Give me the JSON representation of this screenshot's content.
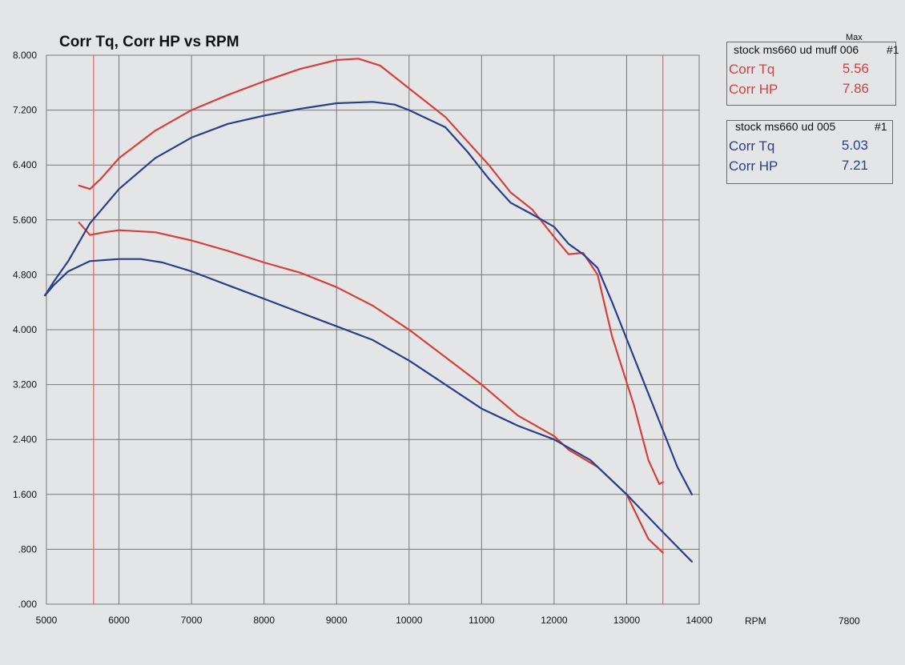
{
  "colors": {
    "red": "#d4403a",
    "blue": "#2a3f8c",
    "grid": "#777777",
    "limit": "#d86a66"
  },
  "legend": {
    "max_label": "Max",
    "run1": {
      "title": "stock ms660 ud muff 006",
      "run_no": "#1",
      "tq_label": "Corr Tq",
      "tq_value": "5.56",
      "hp_label": "Corr HP",
      "hp_value": "7.86"
    },
    "run2": {
      "title": "stock ms660 ud 005",
      "run_no": "#1",
      "tq_label": "Corr Tq",
      "tq_value": "5.03",
      "hp_label": "Corr HP",
      "hp_value": "7.21"
    }
  },
  "chart_data": {
    "type": "line",
    "title": "Corr Tq, Corr HP vs RPM",
    "xlabel": "RPM",
    "x_extra_label": "7800",
    "xlim": [
      5000,
      14000
    ],
    "ylim": [
      0,
      8
    ],
    "x_ticks": [
      "5000",
      "6000",
      "7000",
      "8000",
      "9000",
      "10000",
      "11000",
      "12000",
      "13000",
      "14000"
    ],
    "y_ticks": [
      ".000",
      ".800",
      "1.600",
      "2.400",
      "3.200",
      "4.000",
      "4.800",
      "5.600",
      "6.400",
      "7.200",
      "8.000"
    ],
    "grid": true,
    "limit_lines_rpm": [
      5650,
      13500
    ],
    "series": [
      {
        "name": "stock ms660 ud muff 006 Corr HP",
        "color": "red",
        "points": [
          [
            5450,
            6.1
          ],
          [
            5600,
            6.05
          ],
          [
            5750,
            6.2
          ],
          [
            6000,
            6.5
          ],
          [
            6500,
            6.9
          ],
          [
            7000,
            7.2
          ],
          [
            7500,
            7.42
          ],
          [
            8000,
            7.62
          ],
          [
            8500,
            7.8
          ],
          [
            9000,
            7.93
          ],
          [
            9300,
            7.95
          ],
          [
            9600,
            7.85
          ],
          [
            9900,
            7.6
          ],
          [
            10200,
            7.35
          ],
          [
            10500,
            7.1
          ],
          [
            10800,
            6.75
          ],
          [
            11100,
            6.4
          ],
          [
            11400,
            6.0
          ],
          [
            11700,
            5.75
          ],
          [
            12000,
            5.35
          ],
          [
            12200,
            5.1
          ],
          [
            12400,
            5.12
          ],
          [
            12600,
            4.8
          ],
          [
            12800,
            3.9
          ],
          [
            13100,
            2.9
          ],
          [
            13300,
            2.1
          ],
          [
            13450,
            1.75
          ],
          [
            13500,
            1.78
          ]
        ]
      },
      {
        "name": "stock ms660 ud muff 006 Corr Tq",
        "color": "red",
        "points": [
          [
            5450,
            5.56
          ],
          [
            5600,
            5.38
          ],
          [
            5800,
            5.42
          ],
          [
            6000,
            5.45
          ],
          [
            6500,
            5.42
          ],
          [
            7000,
            5.3
          ],
          [
            7500,
            5.15
          ],
          [
            8000,
            4.98
          ],
          [
            8500,
            4.83
          ],
          [
            9000,
            4.62
          ],
          [
            9500,
            4.35
          ],
          [
            10000,
            4.0
          ],
          [
            10500,
            3.6
          ],
          [
            11000,
            3.2
          ],
          [
            11500,
            2.75
          ],
          [
            12000,
            2.45
          ],
          [
            12200,
            2.25
          ],
          [
            12600,
            2.0
          ],
          [
            13000,
            1.6
          ],
          [
            13300,
            0.95
          ],
          [
            13500,
            0.75
          ]
        ]
      },
      {
        "name": "stock ms660 ud 005 Corr HP",
        "color": "blue",
        "points": [
          [
            4980,
            4.5
          ],
          [
            5100,
            4.7
          ],
          [
            5300,
            5.0
          ],
          [
            5600,
            5.55
          ],
          [
            6000,
            6.05
          ],
          [
            6500,
            6.5
          ],
          [
            7000,
            6.8
          ],
          [
            7500,
            7.0
          ],
          [
            8000,
            7.12
          ],
          [
            8500,
            7.22
          ],
          [
            9000,
            7.3
          ],
          [
            9500,
            7.32
          ],
          [
            9800,
            7.28
          ],
          [
            10000,
            7.2
          ],
          [
            10500,
            6.95
          ],
          [
            10800,
            6.6
          ],
          [
            11100,
            6.2
          ],
          [
            11400,
            5.85
          ],
          [
            11700,
            5.68
          ],
          [
            12000,
            5.5
          ],
          [
            12200,
            5.25
          ],
          [
            12400,
            5.1
          ],
          [
            12600,
            4.9
          ],
          [
            12800,
            4.4
          ],
          [
            13100,
            3.6
          ],
          [
            13400,
            2.8
          ],
          [
            13700,
            2.0
          ],
          [
            13900,
            1.6
          ]
        ]
      },
      {
        "name": "stock ms660 ud 005 Corr Tq",
        "color": "blue",
        "points": [
          [
            4980,
            4.5
          ],
          [
            5100,
            4.65
          ],
          [
            5300,
            4.85
          ],
          [
            5600,
            5.0
          ],
          [
            6000,
            5.03
          ],
          [
            6300,
            5.03
          ],
          [
            6600,
            4.98
          ],
          [
            7000,
            4.85
          ],
          [
            7500,
            4.65
          ],
          [
            8000,
            4.45
          ],
          [
            8500,
            4.25
          ],
          [
            9000,
            4.05
          ],
          [
            9500,
            3.85
          ],
          [
            10000,
            3.55
          ],
          [
            10500,
            3.2
          ],
          [
            11000,
            2.85
          ],
          [
            11500,
            2.6
          ],
          [
            12000,
            2.4
          ],
          [
            12500,
            2.1
          ],
          [
            13000,
            1.6
          ],
          [
            13500,
            1.05
          ],
          [
            13900,
            0.62
          ]
        ]
      }
    ]
  }
}
